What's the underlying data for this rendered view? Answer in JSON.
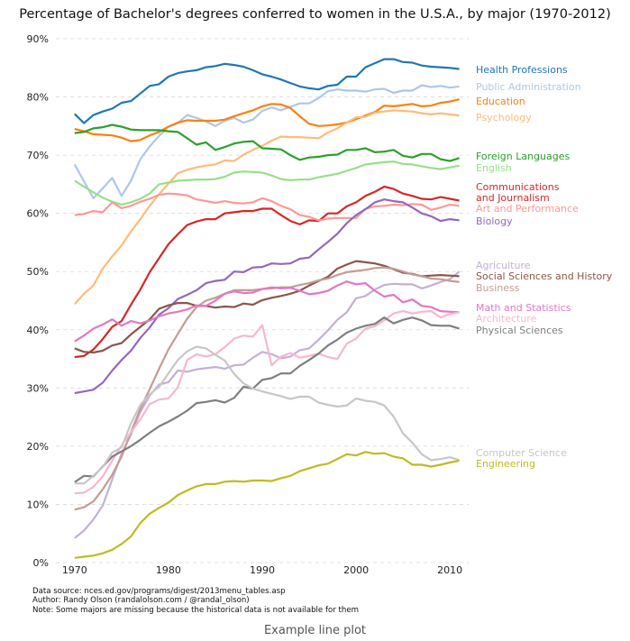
{
  "caption": "Example line plot",
  "notes": [
    "Data source: nces.ed.gov/programs/digest/2013menu_tables.asp",
    "Author: Randy Olson (randalolson.com / @randal_olson)",
    "Note: Some majors are missing because the historical data is not available for them"
  ],
  "chart_data": {
    "type": "line",
    "title": "Percentage of Bachelor's degrees conferred to women in the U.S.A., by major (1970-2012)",
    "xlabel": "",
    "ylabel": "",
    "xlim": [
      1968,
      2012
    ],
    "ylim": [
      0,
      90
    ],
    "x_ticks": [
      1970,
      1980,
      1990,
      2000,
      2010
    ],
    "y_ticks": [
      0,
      10,
      20,
      30,
      40,
      50,
      60,
      70,
      80,
      90
    ],
    "y_tick_suffix": "%",
    "grid": "horizontal dashed",
    "legend": "labels at right end of each line",
    "x": [
      1970,
      1971,
      1972,
      1973,
      1974,
      1975,
      1976,
      1977,
      1978,
      1979,
      1980,
      1981,
      1982,
      1983,
      1984,
      1985,
      1986,
      1987,
      1988,
      1989,
      1990,
      1991,
      1992,
      1993,
      1994,
      1995,
      1996,
      1997,
      1998,
      1999,
      2000,
      2001,
      2002,
      2003,
      2004,
      2005,
      2006,
      2007,
      2008,
      2009,
      2010,
      2011
    ],
    "series": [
      {
        "name": "Health Professions",
        "color": "#1f77b4",
        "values": [
          77.1,
          75.5,
          76.9,
          77.5,
          78.0,
          79.0,
          79.3,
          80.6,
          81.9,
          82.2,
          83.5,
          84.1,
          84.4,
          84.6,
          85.1,
          85.3,
          85.7,
          85.5,
          85.2,
          84.6,
          83.9,
          83.5,
          83.0,
          82.4,
          81.8,
          81.5,
          81.3,
          81.9,
          82.1,
          83.5,
          83.5,
          85.1,
          85.8,
          86.5,
          86.5,
          86.0,
          85.9,
          85.4,
          85.2,
          85.1,
          85.0,
          84.8
        ]
      },
      {
        "name": "Public Administration",
        "color": "#aec7e8",
        "values": [
          68.4,
          65.5,
          62.6,
          64.3,
          66.1,
          63.0,
          65.6,
          69.3,
          71.5,
          73.3,
          74.9,
          75.5,
          76.9,
          76.4,
          75.8,
          75.0,
          75.9,
          76.4,
          75.6,
          76.1,
          77.6,
          78.2,
          77.7,
          78.3,
          78.9,
          78.9,
          79.8,
          81.0,
          81.3,
          81.1,
          81.1,
          80.9,
          81.3,
          81.4,
          80.7,
          81.1,
          81.1,
          82.0,
          81.7,
          81.9,
          81.6,
          81.8
        ]
      },
      {
        "name": "Education",
        "color": "#ff7f0e",
        "values": [
          74.5,
          74.1,
          73.6,
          73.5,
          73.4,
          73.0,
          72.4,
          72.6,
          73.4,
          74.0,
          74.9,
          75.6,
          76.0,
          75.9,
          75.9,
          75.9,
          76.1,
          76.7,
          77.2,
          77.7,
          78.4,
          78.8,
          78.7,
          78.1,
          76.7,
          75.4,
          75.0,
          75.1,
          75.3,
          75.6,
          76.2,
          76.8,
          77.4,
          78.5,
          78.4,
          78.6,
          78.8,
          78.4,
          78.5,
          79.0,
          79.2,
          79.6
        ]
      },
      {
        "name": "Psychology",
        "color": "#ffbb78",
        "values": [
          44.4,
          46.2,
          47.6,
          50.5,
          52.6,
          54.5,
          56.9,
          59.0,
          61.3,
          63.3,
          65.1,
          66.9,
          67.5,
          67.9,
          68.2,
          68.4,
          69.1,
          69.0,
          70.1,
          70.9,
          71.6,
          72.5,
          73.2,
          73.1,
          73.1,
          73.0,
          72.9,
          73.9,
          74.6,
          75.6,
          76.5,
          76.6,
          77.3,
          77.5,
          77.7,
          77.6,
          77.5,
          77.2,
          77.0,
          77.2,
          77.0,
          76.8
        ]
      },
      {
        "name": "Foreign Languages",
        "color": "#2ca02c",
        "values": [
          73.8,
          74.0,
          74.6,
          74.8,
          75.2,
          74.9,
          74.4,
          74.3,
          74.3,
          74.3,
          74.1,
          74.0,
          72.9,
          71.8,
          72.2,
          70.9,
          71.4,
          72.0,
          72.3,
          72.4,
          71.2,
          71.1,
          71.0,
          70.0,
          69.2,
          69.6,
          69.7,
          70.0,
          70.1,
          70.9,
          70.9,
          71.2,
          70.5,
          70.6,
          70.9,
          69.9,
          69.6,
          70.2,
          70.2,
          69.3,
          69.0,
          69.5
        ]
      },
      {
        "name": "English",
        "color": "#98df8a",
        "values": [
          65.6,
          64.6,
          63.6,
          62.7,
          62.0,
          61.5,
          61.9,
          62.5,
          63.4,
          65.0,
          65.3,
          65.6,
          65.7,
          65.8,
          65.8,
          65.9,
          66.3,
          67.0,
          67.2,
          67.1,
          67.0,
          66.5,
          65.9,
          65.7,
          65.8,
          65.8,
          66.2,
          66.5,
          66.8,
          67.3,
          67.8,
          68.4,
          68.6,
          68.8,
          68.9,
          68.5,
          68.4,
          68.1,
          67.8,
          67.6,
          67.9,
          68.2
        ]
      },
      {
        "name": "Communications\nand Journalism",
        "color": "#d62728",
        "values": [
          35.3,
          35.5,
          36.6,
          38.4,
          40.5,
          41.5,
          44.3,
          46.9,
          49.9,
          52.3,
          54.7,
          56.4,
          58.0,
          58.6,
          59.0,
          59.0,
          60.0,
          60.2,
          60.4,
          60.4,
          60.8,
          60.8,
          59.7,
          58.7,
          58.1,
          58.8,
          58.7,
          60.0,
          60.0,
          61.2,
          61.9,
          63.0,
          63.7,
          64.6,
          64.2,
          63.4,
          63.0,
          62.5,
          62.4,
          62.8,
          62.5,
          62.2
        ]
      },
      {
        "name": "Art and Performance",
        "color": "#ff9896",
        "values": [
          59.7,
          59.9,
          60.4,
          60.2,
          61.9,
          60.9,
          61.3,
          62.0,
          62.5,
          63.2,
          63.4,
          63.3,
          63.1,
          62.4,
          62.1,
          61.8,
          62.1,
          61.8,
          61.7,
          61.9,
          62.6,
          62.1,
          61.3,
          60.7,
          59.7,
          59.4,
          58.8,
          59.1,
          59.2,
          59.2,
          59.2,
          60.8,
          61.2,
          61.3,
          61.5,
          61.4,
          61.6,
          61.5,
          60.6,
          61.0,
          61.5,
          61.3
        ]
      },
      {
        "name": "Biology",
        "color": "#9467bd",
        "values": [
          29.1,
          29.4,
          29.7,
          30.9,
          33.0,
          34.8,
          36.4,
          38.6,
          40.4,
          42.6,
          43.7,
          45.3,
          46.0,
          46.8,
          48.0,
          48.4,
          48.6,
          50.0,
          49.9,
          50.7,
          50.8,
          51.4,
          51.3,
          51.4,
          52.2,
          52.4,
          53.8,
          55.1,
          56.5,
          58.3,
          59.7,
          60.7,
          61.9,
          62.4,
          62.1,
          61.9,
          61.0,
          60.0,
          59.5,
          58.7,
          59.0,
          58.8
        ]
      },
      {
        "name": "Agriculture",
        "color": "#c5b0d5",
        "values": [
          4.2,
          5.5,
          7.4,
          9.8,
          14.3,
          18.7,
          22.0,
          25.9,
          28.7,
          30.6,
          31.0,
          33.0,
          32.8,
          33.2,
          33.4,
          33.6,
          33.3,
          33.9,
          34.0,
          35.2,
          36.2,
          35.8,
          35.1,
          35.4,
          36.5,
          36.8,
          38.3,
          39.9,
          41.7,
          43.0,
          45.4,
          45.8,
          46.9,
          47.7,
          47.9,
          47.8,
          47.8,
          47.1,
          47.6,
          48.2,
          48.7,
          50.0
        ]
      },
      {
        "name": "Social Sciences and History",
        "color": "#8c564b",
        "values": [
          36.8,
          36.2,
          36.1,
          36.4,
          37.3,
          37.7,
          39.2,
          40.5,
          41.8,
          43.6,
          44.2,
          44.6,
          44.6,
          44.1,
          44.1,
          43.8,
          44.0,
          43.9,
          44.5,
          44.3,
          45.1,
          45.5,
          45.8,
          46.2,
          46.7,
          47.6,
          48.4,
          49.1,
          50.5,
          51.2,
          51.8,
          51.6,
          51.4,
          51.0,
          50.4,
          49.8,
          49.6,
          49.2,
          49.3,
          49.4,
          49.3,
          49.2
        ]
      },
      {
        "name": "Business",
        "color": "#c49c94",
        "values": [
          9.1,
          9.5,
          10.5,
          12.6,
          15.1,
          18.2,
          22.4,
          26.4,
          29.8,
          33.3,
          36.6,
          39.3,
          41.9,
          43.9,
          45.0,
          45.5,
          46.2,
          46.8,
          46.8,
          46.8,
          47.0,
          47.1,
          47.3,
          47.3,
          47.7,
          48.0,
          48.5,
          48.8,
          49.4,
          49.9,
          50.1,
          50.3,
          50.6,
          50.7,
          50.5,
          50.0,
          49.5,
          49.2,
          48.8,
          48.7,
          48.4,
          48.2
        ]
      },
      {
        "name": "Math and Statistics",
        "color": "#e377c2",
        "values": [
          38.0,
          39.0,
          40.2,
          40.9,
          41.8,
          40.7,
          41.5,
          41.1,
          41.6,
          42.3,
          42.8,
          43.1,
          43.5,
          44.2,
          44.1,
          45.0,
          46.2,
          46.6,
          46.3,
          46.4,
          47.0,
          47.3,
          47.1,
          47.2,
          46.7,
          46.1,
          46.3,
          46.7,
          47.6,
          48.3,
          47.8,
          48.0,
          46.7,
          45.7,
          46.0,
          44.7,
          45.2,
          44.1,
          43.9,
          43.2,
          43.1,
          43.0
        ]
      },
      {
        "name": "Architecture",
        "color": "#f7b6d2",
        "values": [
          11.9,
          12.0,
          13.0,
          14.8,
          17.5,
          20.1,
          22.4,
          24.6,
          27.2,
          28.0,
          28.2,
          30.1,
          34.8,
          35.8,
          35.4,
          35.8,
          37.0,
          38.5,
          39.0,
          38.8,
          40.8,
          33.9,
          35.4,
          36.0,
          35.2,
          35.5,
          35.9,
          35.3,
          35.0,
          37.6,
          38.5,
          40.2,
          40.6,
          41.6,
          42.8,
          43.2,
          42.8,
          43.1,
          43.2,
          42.1,
          42.7,
          43.0
        ]
      },
      {
        "name": "Physical Sciences",
        "color": "#7f7f7f",
        "values": [
          13.8,
          14.9,
          14.8,
          16.5,
          18.2,
          19.1,
          20.0,
          21.1,
          22.3,
          23.4,
          24.2,
          25.1,
          26.1,
          27.4,
          27.6,
          27.9,
          27.5,
          28.3,
          30.2,
          29.9,
          31.4,
          31.7,
          32.5,
          32.5,
          33.8,
          34.8,
          35.9,
          37.3,
          38.3,
          39.5,
          40.2,
          40.7,
          41.0,
          42.1,
          41.1,
          41.7,
          42.1,
          41.6,
          40.8,
          40.7,
          40.7,
          40.2
        ]
      },
      {
        "name": "Computer Science",
        "color": "#c7c7c7",
        "values": [
          13.6,
          13.6,
          14.9,
          16.4,
          18.9,
          19.8,
          23.9,
          27.1,
          28.9,
          30.2,
          32.5,
          34.8,
          36.3,
          37.1,
          36.8,
          35.7,
          34.7,
          32.4,
          30.8,
          29.9,
          29.4,
          29.0,
          28.6,
          28.1,
          28.5,
          28.5,
          27.5,
          27.1,
          26.8,
          27.0,
          28.2,
          27.8,
          27.6,
          27.0,
          25.1,
          22.2,
          20.6,
          18.6,
          17.6,
          17.8,
          18.1,
          17.6
        ]
      },
      {
        "name": "Engineering",
        "color": "#bcbd22",
        "values": [
          0.8,
          1.0,
          1.2,
          1.6,
          2.2,
          3.2,
          4.5,
          6.8,
          8.4,
          9.4,
          10.3,
          11.6,
          12.4,
          13.1,
          13.5,
          13.5,
          13.9,
          14.0,
          13.9,
          14.1,
          14.1,
          14.0,
          14.5,
          14.9,
          15.7,
          16.2,
          16.7,
          17.0,
          17.8,
          18.6,
          18.4,
          19.0,
          18.7,
          18.8,
          18.2,
          17.9,
          16.8,
          16.8,
          16.5,
          16.8,
          17.2,
          17.5
        ]
      }
    ]
  }
}
